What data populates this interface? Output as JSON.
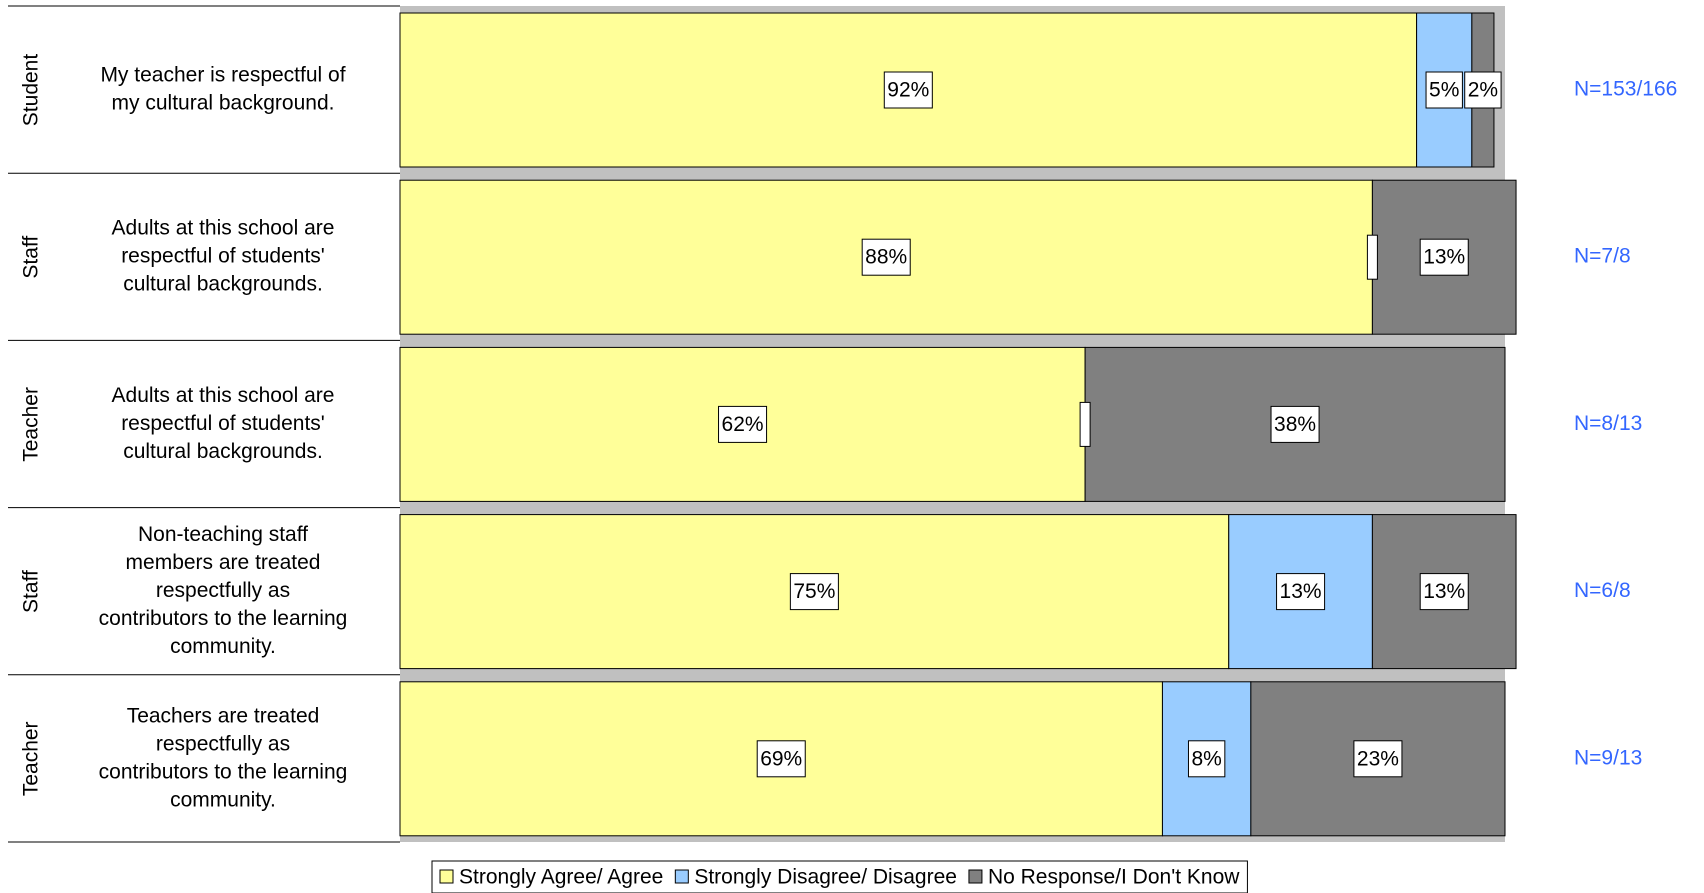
{
  "chart_data": {
    "type": "stacked_barh",
    "groups": [
      "Student",
      "Staff",
      "Teacher",
      "Staff",
      "Teacher"
    ],
    "categories": [
      [
        "My teacher is respectful of",
        "my cultural background."
      ],
      [
        "Adults at this school are",
        "respectful of students'",
        "cultural backgrounds."
      ],
      [
        "Adults at this school are",
        "respectful of students'",
        "cultural backgrounds."
      ],
      [
        "Non-teaching staff",
        "members are treated",
        "respectfully as",
        "contributors to the learning",
        "community."
      ],
      [
        "Teachers are treated",
        "respectfully as",
        "contributors to the learning",
        "community."
      ]
    ],
    "n_labels": [
      "N=153/166",
      "N=7/8",
      "N=8/13",
      "N=6/8",
      "N=9/13"
    ],
    "series": [
      {
        "name": "Strongly Agree/ Agree",
        "color": "#ffff99",
        "values": [
          92,
          88,
          62,
          75,
          69
        ],
        "value_labels": [
          "92%",
          "88%",
          "62%",
          "75%",
          "69%"
        ]
      },
      {
        "name": "Strongly Disagree/ Disagree",
        "color": "#99ccff",
        "values": [
          5,
          0,
          0,
          13,
          8
        ],
        "value_labels": [
          "5%",
          null,
          null,
          "13%",
          "8%"
        ]
      },
      {
        "name": "No Response/I Don't Know",
        "color": "#808080",
        "values": [
          2,
          13,
          38,
          13,
          23
        ],
        "value_labels": [
          "2%",
          "13%",
          "38%",
          "13%",
          "23%"
        ]
      }
    ],
    "xlim": [
      0,
      100
    ]
  }
}
